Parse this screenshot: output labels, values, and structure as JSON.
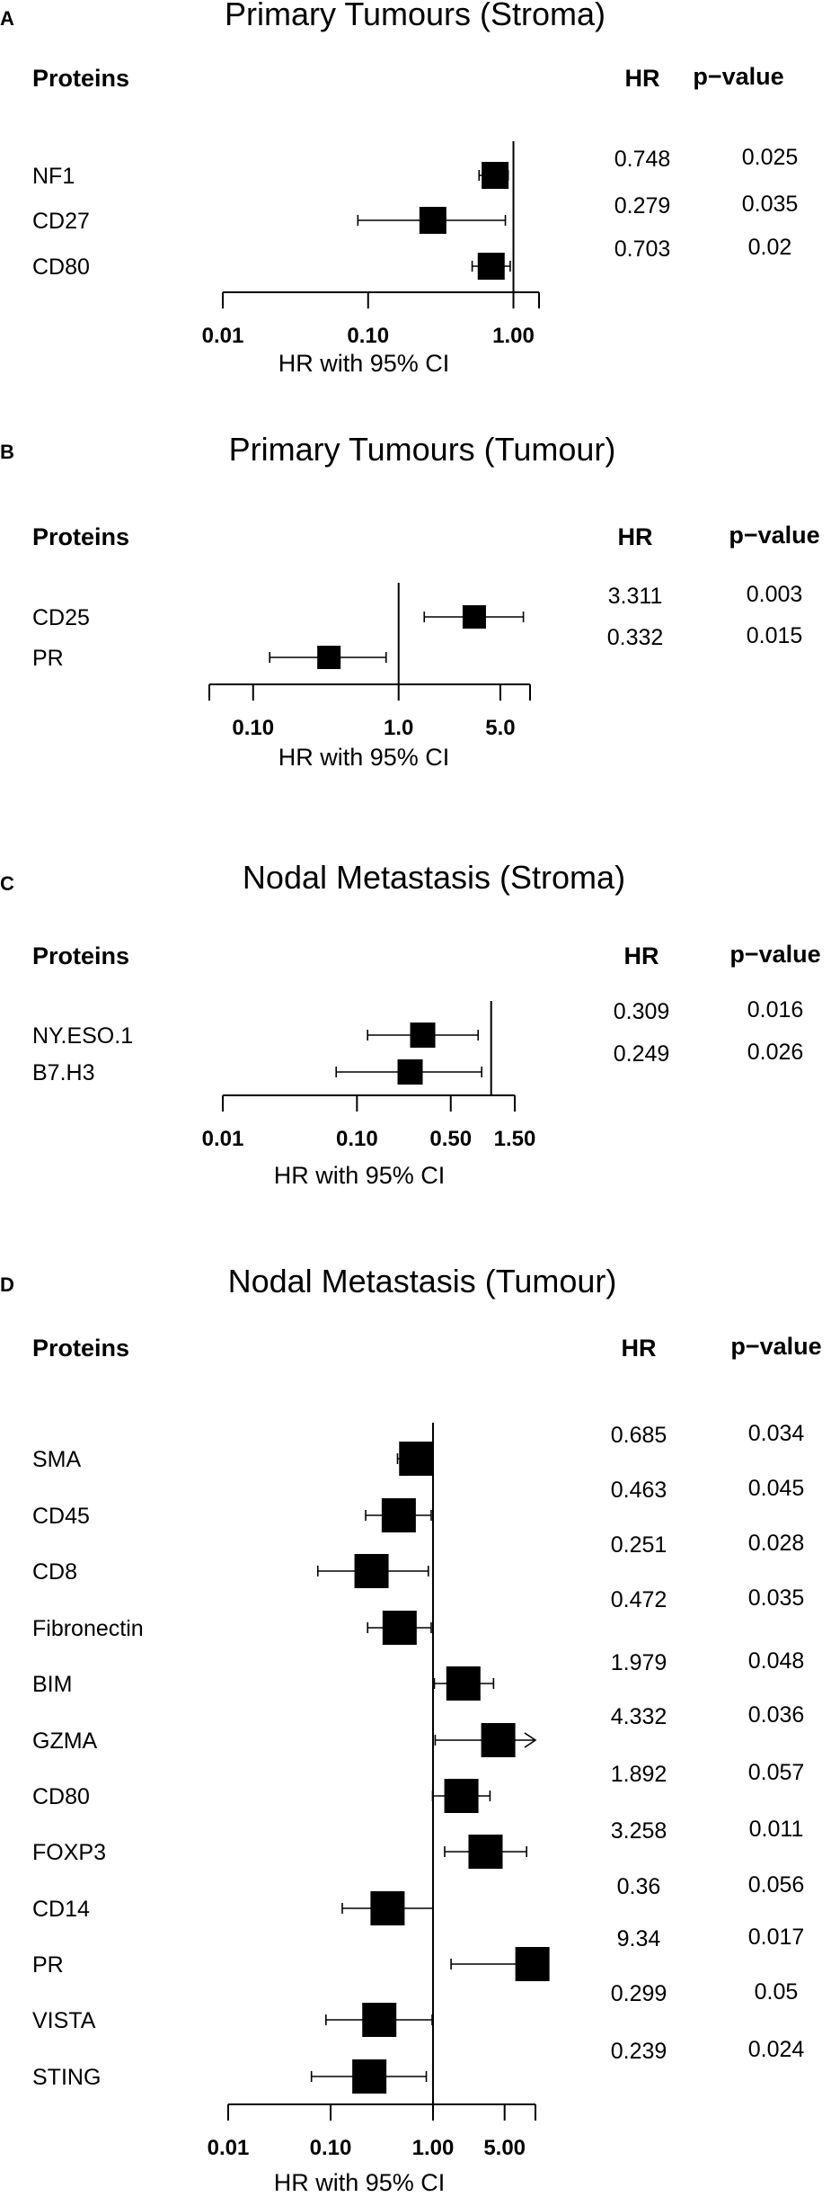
{
  "figure": {
    "headers": {
      "proteins": "Proteins",
      "hr": "HR",
      "pvalue": "p−value"
    },
    "xlabel": "HR with 95% CI"
  },
  "chart_data": [
    {
      "type": "forest",
      "panel": "A",
      "title": "Primary Tumours (Stroma)",
      "xlabel": "HR with 95% CI",
      "xscale": "log",
      "xlim": [
        0.01,
        1.5
      ],
      "reference_line": 1,
      "x_ticks": [
        0.01,
        0.1,
        1,
        1.5
      ],
      "x_tick_labels": [
        "0.01",
        "0.10",
        "1.00",
        ""
      ],
      "rows": [
        {
          "label": "NF1",
          "hr": 0.748,
          "ci": [
            0.58,
            0.92
          ],
          "hr_text": "0.748",
          "p_text": "0.025"
        },
        {
          "label": "CD27",
          "hr": 0.279,
          "ci": [
            0.085,
            0.88
          ],
          "hr_text": "0.279",
          "p_text": "0.035"
        },
        {
          "label": "CD80",
          "hr": 0.703,
          "ci": [
            0.52,
            0.95
          ],
          "hr_text": "0.703",
          "p_text": "0.02"
        }
      ]
    },
    {
      "type": "forest",
      "panel": "B",
      "title": "Primary Tumours (Tumour)",
      "xlabel": "HR with 95% CI",
      "xscale": "log",
      "xlim": [
        0.05,
        8
      ],
      "reference_line": 1,
      "x_ticks": [
        0.05,
        0.1,
        1,
        5,
        8
      ],
      "x_tick_labels": [
        "",
        "0.10",
        "1.0",
        "5.0",
        ""
      ],
      "rows": [
        {
          "label": "CD25",
          "hr": 3.311,
          "ci": [
            1.5,
            7.2
          ],
          "hr_text": "3.311",
          "p_text": "0.003"
        },
        {
          "label": "PR",
          "hr": 0.332,
          "ci": [
            0.13,
            0.82
          ],
          "hr_text": "0.332",
          "p_text": "0.015"
        }
      ]
    },
    {
      "type": "forest",
      "panel": "C",
      "title": "Nodal Metastasis (Stroma)",
      "xlabel": "HR with 95% CI",
      "xscale": "log",
      "xlim": [
        0.01,
        1.5
      ],
      "reference_line": 1,
      "x_ticks": [
        0.01,
        0.1,
        0.5,
        1.5
      ],
      "x_tick_labels": [
        "0.01",
        "0.10",
        "0.50",
        "1.50"
      ],
      "rows": [
        {
          "label": "NY.ESO.1",
          "hr": 0.309,
          "ci": [
            0.12,
            0.8
          ],
          "hr_text": "0.309",
          "p_text": "0.016"
        },
        {
          "label": "B7.H3",
          "hr": 0.249,
          "ci": [
            0.07,
            0.85
          ],
          "hr_text": "0.249",
          "p_text": "0.026"
        }
      ]
    },
    {
      "type": "forest",
      "panel": "D",
      "title": "Nodal Metastasis (Tumour)",
      "xlabel": "HR with 95% CI",
      "xscale": "log",
      "xlim": [
        0.01,
        10
      ],
      "reference_line": 1,
      "x_ticks": [
        0.01,
        0.1,
        1,
        5,
        10
      ],
      "x_tick_labels": [
        "0.01",
        "0.10",
        "1.00",
        "5.00",
        ""
      ],
      "rows": [
        {
          "label": "SMA",
          "hr": 0.685,
          "ci": [
            0.45,
            1.0
          ],
          "hr_text": "0.685",
          "p_text": "0.034"
        },
        {
          "label": "CD45",
          "hr": 0.463,
          "ci": [
            0.22,
            0.96
          ],
          "hr_text": "0.463",
          "p_text": "0.045"
        },
        {
          "label": "CD8",
          "hr": 0.251,
          "ci": [
            0.075,
            0.9
          ],
          "hr_text": "0.251",
          "p_text": "0.028"
        },
        {
          "label": "Fibronectin",
          "hr": 0.472,
          "ci": [
            0.23,
            0.96
          ],
          "hr_text": "0.472",
          "p_text": "0.035"
        },
        {
          "label": "BIM",
          "hr": 1.979,
          "ci": [
            1.03,
            3.9
          ],
          "hr_text": "1.979",
          "p_text": "0.048"
        },
        {
          "label": "GZMA",
          "hr": 4.332,
          "ci": [
            1.05,
            10
          ],
          "hr_text": "4.332",
          "p_text": "0.036",
          "arrow_right": true
        },
        {
          "label": "CD80",
          "hr": 1.892,
          "ci": [
            0.99,
            3.6
          ],
          "hr_text": "1.892",
          "p_text": "0.057"
        },
        {
          "label": "FOXP3",
          "hr": 3.258,
          "ci": [
            1.3,
            8.2
          ],
          "hr_text": "3.258",
          "p_text": "0.011"
        },
        {
          "label": "CD14",
          "hr": 0.36,
          "ci": [
            0.13,
            1.0
          ],
          "hr_text": "0.36",
          "p_text": "0.056"
        },
        {
          "label": "PR",
          "hr": 9.34,
          "ci": [
            1.5,
            10
          ],
          "hr_text": "9.34",
          "p_text": "0.017"
        },
        {
          "label": "VISTA",
          "hr": 0.299,
          "ci": [
            0.09,
            0.98
          ],
          "hr_text": "0.299",
          "p_text": "0.05"
        },
        {
          "label": "STING",
          "hr": 0.239,
          "ci": [
            0.065,
            0.86
          ],
          "hr_text": "0.239",
          "p_text": "0.024"
        }
      ]
    }
  ]
}
